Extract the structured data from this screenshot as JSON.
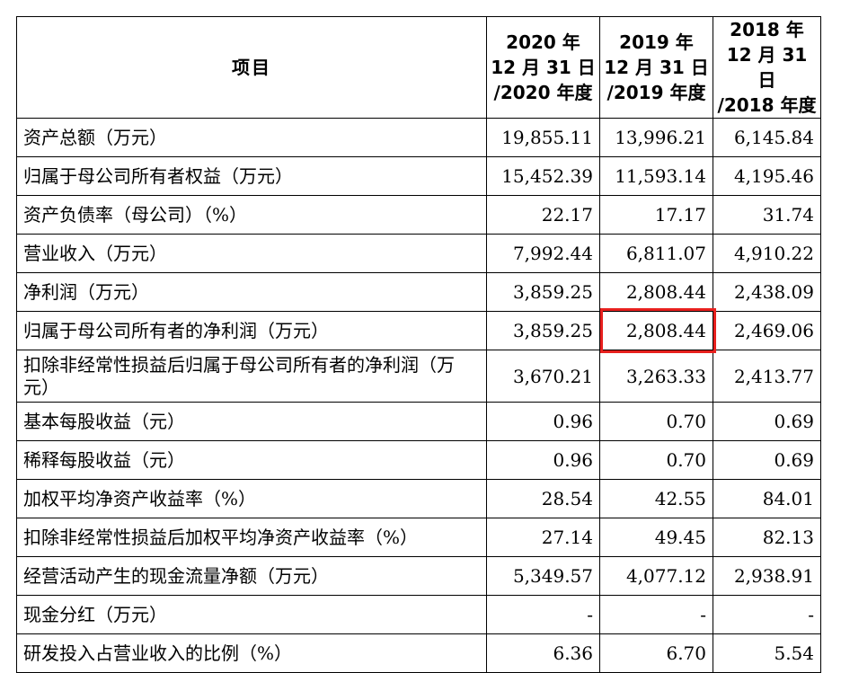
{
  "table": {
    "headers": {
      "item": "项目",
      "col2020": [
        "2020 年",
        "12 月 31 日",
        "/2020 年度"
      ],
      "col2019": [
        "2019 年",
        "12 月 31 日",
        "/2019 年度"
      ],
      "col2018": [
        "2018 年",
        "12 月 31 日",
        "/2018 年度"
      ]
    },
    "rows": [
      {
        "label": "资产总额（万元）",
        "v2020": "19,855.11",
        "v2019": "13,996.21",
        "v2018": "6,145.84"
      },
      {
        "label": "归属于母公司所有者权益（万元）",
        "v2020": "15,452.39",
        "v2019": "11,593.14",
        "v2018": "4,195.46"
      },
      {
        "label": "资产负债率（母公司）（%）",
        "v2020": "22.17",
        "v2019": "17.17",
        "v2018": "31.74"
      },
      {
        "label": "营业收入（万元）",
        "v2020": "7,992.44",
        "v2019": "6,811.07",
        "v2018": "4,910.22"
      },
      {
        "label": "净利润（万元）",
        "v2020": "3,859.25",
        "v2019": "2,808.44",
        "v2018": "2,438.09"
      },
      {
        "label": "归属于母公司所有者的净利润（万元）",
        "v2020": "3,859.25",
        "v2019": "2,808.44",
        "v2018": "2,469.06"
      },
      {
        "label": "扣除非经常性损益后归属于母公司所有者的净利润（万元）",
        "v2020": "3,670.21",
        "v2019": "3,263.33",
        "v2018": "2,413.77"
      },
      {
        "label": "基本每股收益（元）",
        "v2020": "0.96",
        "v2019": "0.70",
        "v2018": "0.69"
      },
      {
        "label": "稀释每股收益（元）",
        "v2020": "0.96",
        "v2019": "0.70",
        "v2018": "0.69"
      },
      {
        "label": "加权平均净资产收益率（%）",
        "v2020": "28.54",
        "v2019": "42.55",
        "v2018": "84.01"
      },
      {
        "label": "扣除非经常性损益后加权平均净资产收益率（%）",
        "v2020": "27.14",
        "v2019": "49.45",
        "v2018": "82.13"
      },
      {
        "label": "经营活动产生的现金流量净额（万元）",
        "v2020": "5,349.57",
        "v2019": "4,077.12",
        "v2018": "2,938.91"
      },
      {
        "label": "现金分红（万元）",
        "v2020": "-",
        "v2019": "-",
        "v2018": "-"
      },
      {
        "label": "研发投入占营业收入的比例（%）",
        "v2020": "6.36",
        "v2019": "6.70",
        "v2018": "5.54"
      }
    ]
  },
  "highlight": {
    "row_index": 5,
    "column": "2019",
    "color": "#e8201e"
  }
}
